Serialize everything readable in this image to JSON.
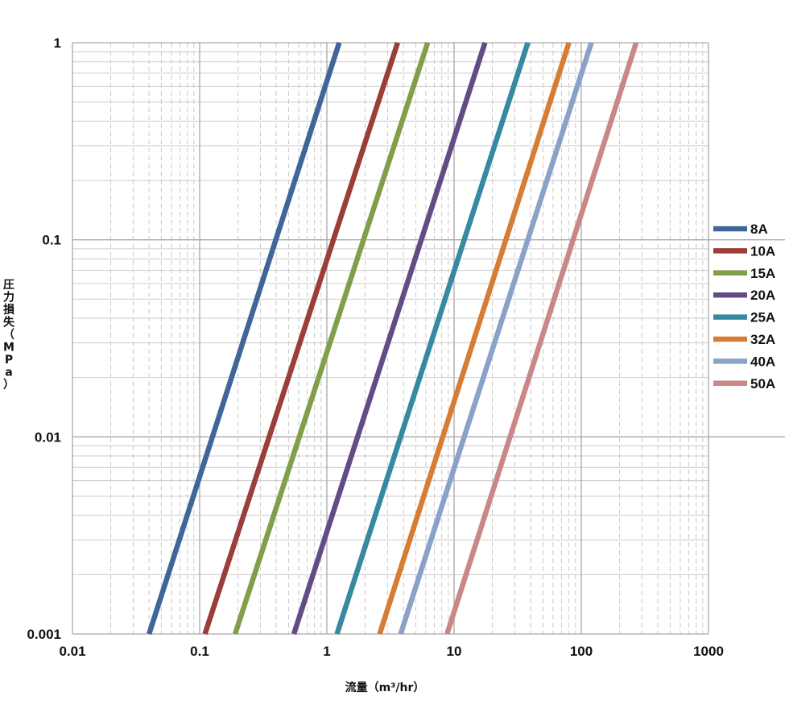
{
  "chart_data": {
    "type": "line",
    "xscale": "log",
    "yscale": "log",
    "xlim": [
      0.01,
      1000
    ],
    "ylim": [
      0.001,
      1
    ],
    "xlabel": "流量（m³/hr）",
    "ylabel_chars": [
      "圧",
      "力",
      "損",
      "失",
      "（",
      "M",
      "P",
      "a",
      "）"
    ],
    "xticks": [
      "0.01",
      "0.1",
      "1",
      "10",
      "100",
      "1000"
    ],
    "yticks": [
      "0.001",
      "0.01",
      "0.1",
      "1"
    ],
    "grid": true,
    "legend_position": "right",
    "series": [
      {
        "name": "8A",
        "color": "#3f6599",
        "x": [
          0.04,
          1.25
        ],
        "y": [
          0.001,
          1
        ]
      },
      {
        "name": "10A",
        "color": "#9b3d38",
        "x": [
          0.11,
          3.6
        ],
        "y": [
          0.001,
          1
        ]
      },
      {
        "name": "15A",
        "color": "#7f9f4a",
        "x": [
          0.19,
          6.2
        ],
        "y": [
          0.001,
          1
        ]
      },
      {
        "name": "20A",
        "color": "#634b85",
        "x": [
          0.55,
          17.5
        ],
        "y": [
          0.001,
          1
        ]
      },
      {
        "name": "25A",
        "color": "#3689a0",
        "x": [
          1.2,
          38
        ],
        "y": [
          0.001,
          1
        ]
      },
      {
        "name": "32A",
        "color": "#d57d34",
        "x": [
          2.6,
          80
        ],
        "y": [
          0.001,
          1
        ]
      },
      {
        "name": "40A",
        "color": "#8aa2c8",
        "x": [
          3.8,
          120
        ],
        "y": [
          0.001,
          1
        ]
      },
      {
        "name": "50A",
        "color": "#c98787",
        "x": [
          8.8,
          270
        ],
        "y": [
          0.001,
          1
        ]
      }
    ]
  }
}
